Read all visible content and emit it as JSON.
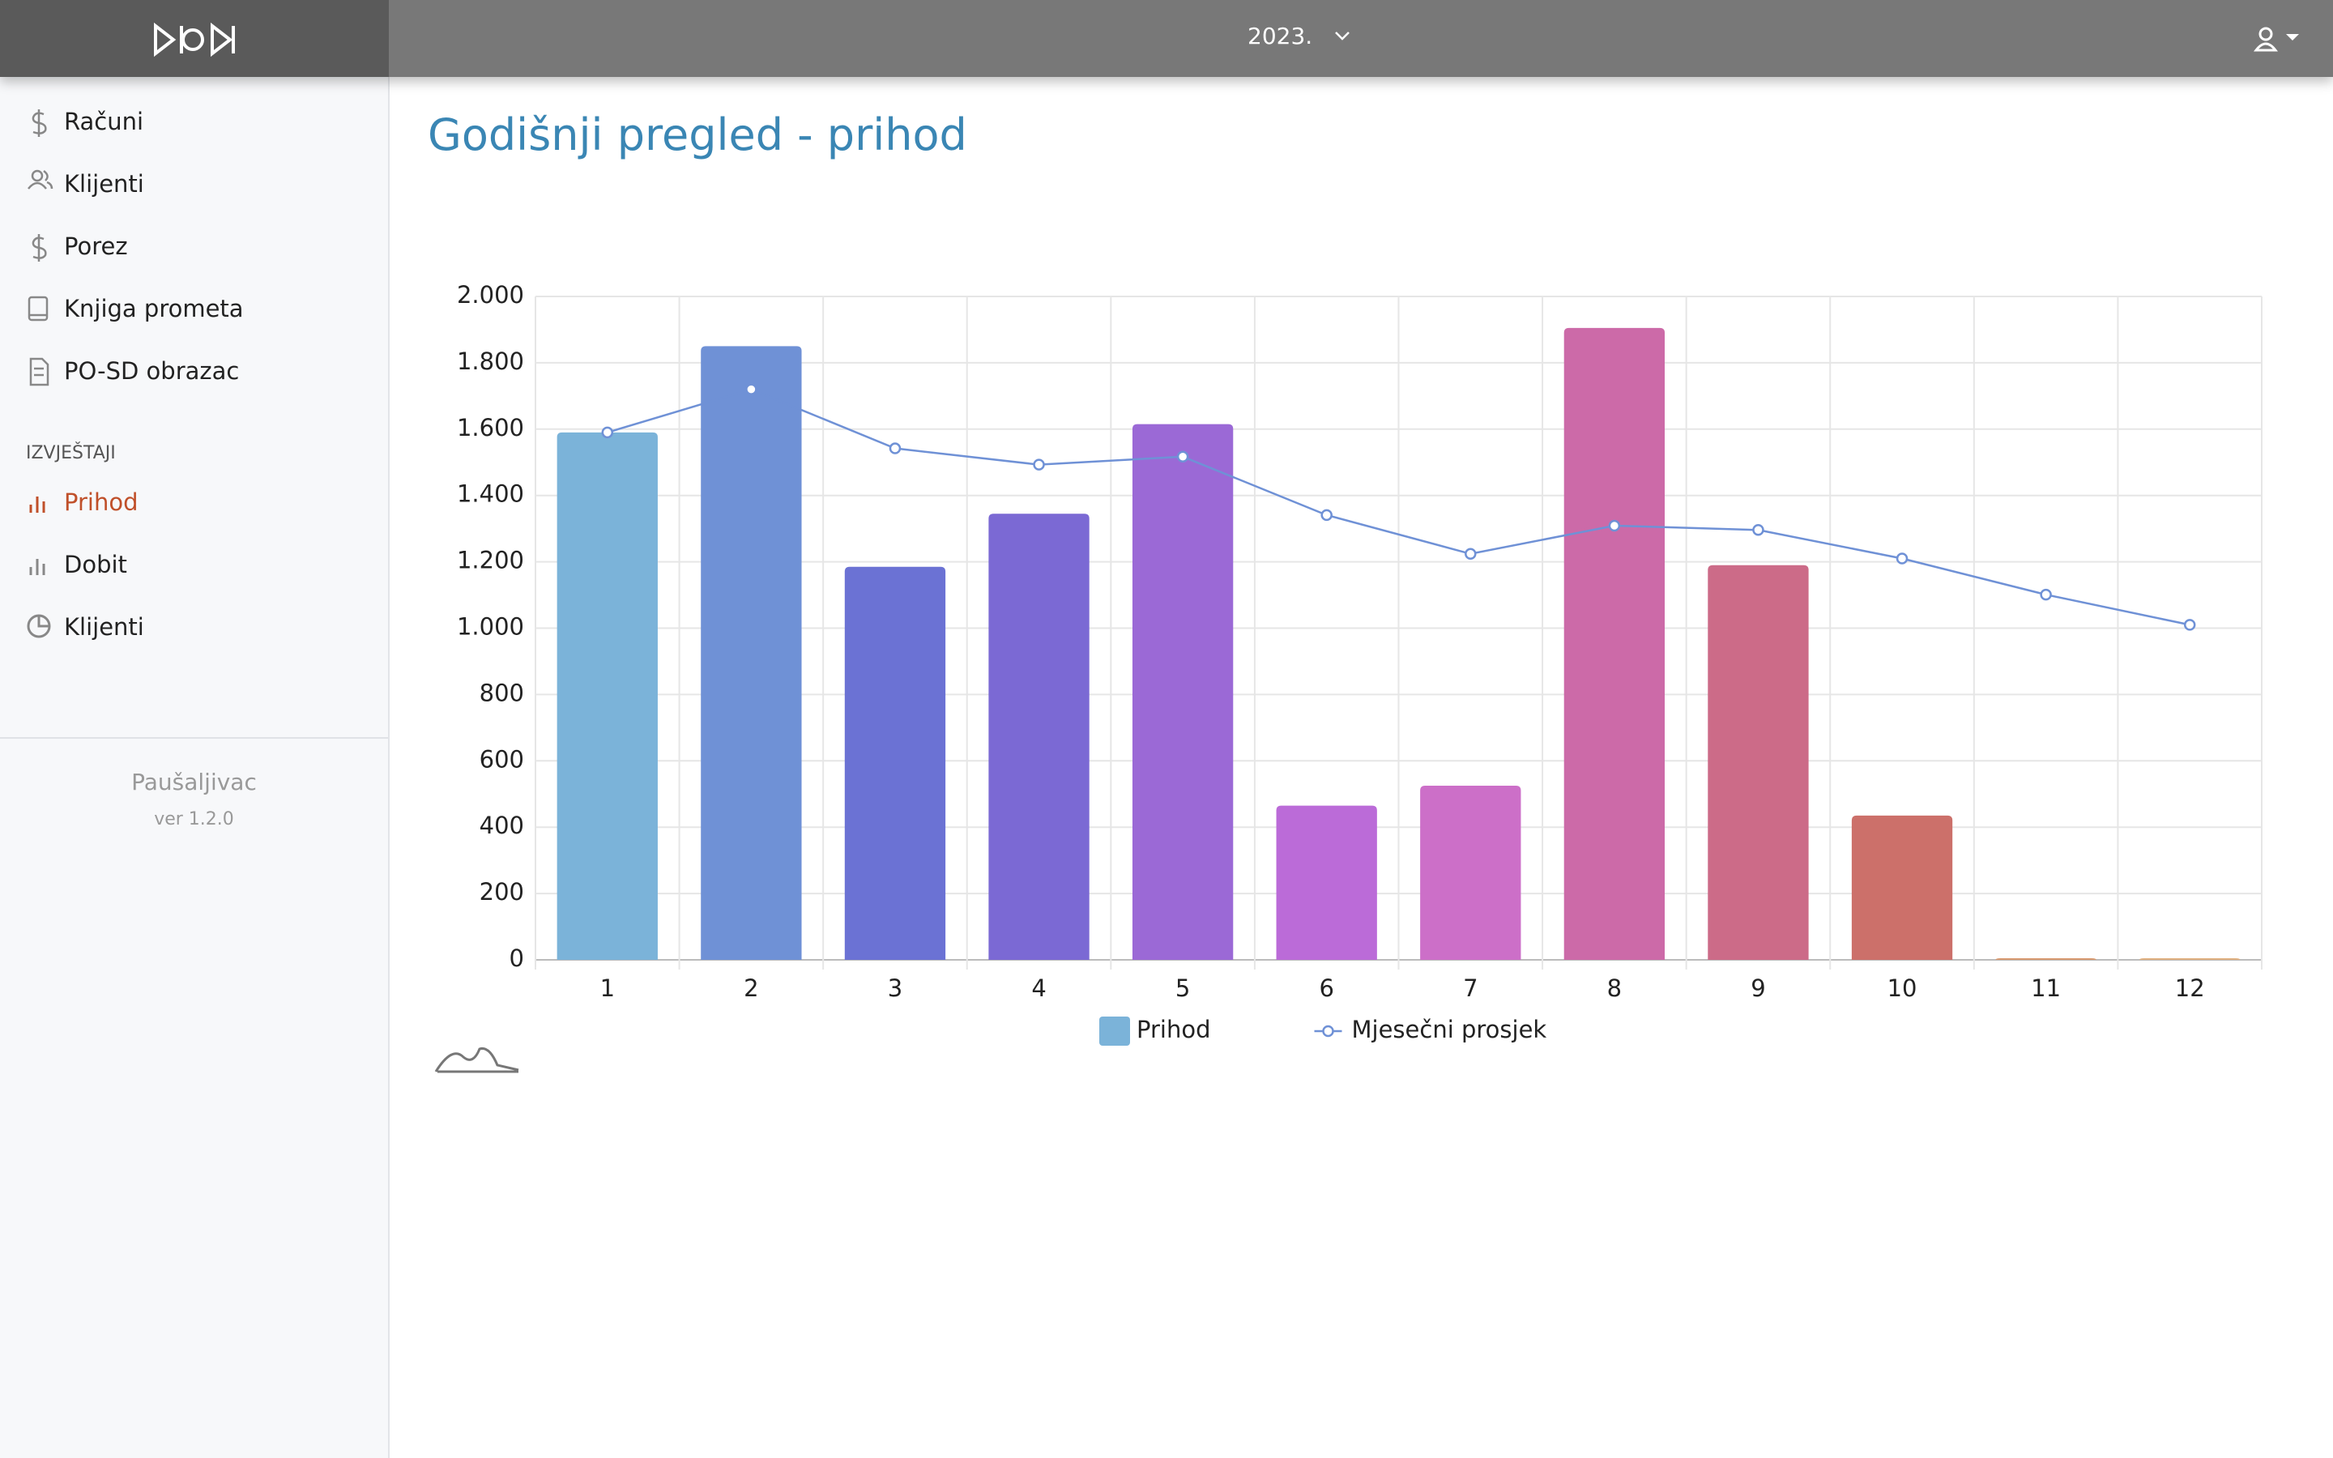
{
  "topbar": {
    "year": "2023."
  },
  "sidebar": {
    "items": [
      "Računi",
      "Klijenti",
      "Porez",
      "Knjiga prometa",
      "PO-SD obrazac"
    ],
    "section_label": "IZVJEŠTAJI",
    "reports": [
      "Prihod",
      "Dobit",
      "Klijenti"
    ],
    "footer": {
      "app_name": "Paušaljivac",
      "version": "ver 1.2.0"
    }
  },
  "chart_data": {
    "type": "bar",
    "title": "Godišnji pregled - prihod",
    "categories": [
      "1",
      "2",
      "3",
      "4",
      "5",
      "6",
      "7",
      "8",
      "9",
      "10",
      "11",
      "12"
    ],
    "series": [
      {
        "name": "Prihod",
        "type": "bar",
        "color": "#7bb3d9",
        "colors": [
          "#7bb3d9",
          "#6f91d6",
          "#6b72d4",
          "#7b69d4",
          "#9b69d6",
          "#bb6bd8",
          "#cc6fc8",
          "#cc6aa8",
          "#cc6b88",
          "#cc706a",
          "#d89a70",
          "#e0b080"
        ],
        "values": [
          1590,
          1850,
          1185,
          1345,
          1615,
          465,
          525,
          1905,
          1190,
          435,
          5,
          5
        ]
      },
      {
        "name": "Mjesečni prosjek",
        "type": "line",
        "color": "#6f91d6",
        "values": [
          1590,
          1720,
          1542,
          1493,
          1517,
          1341,
          1224,
          1309,
          1296,
          1210,
          1101,
          1010
        ]
      }
    ],
    "ylim": [
      0,
      2000
    ],
    "yticks": [
      0,
      200,
      400,
      600,
      800,
      {
        "value": 1000,
        "label": "1.000"
      },
      {
        "value": 1200,
        "label": "1.200"
      },
      {
        "value": 1400,
        "label": "1.400"
      },
      {
        "value": 1600,
        "label": "1.600"
      },
      {
        "value": 1800,
        "label": "1.800"
      },
      {
        "value": 2000,
        "label": "2.000"
      }
    ],
    "grid": true
  }
}
